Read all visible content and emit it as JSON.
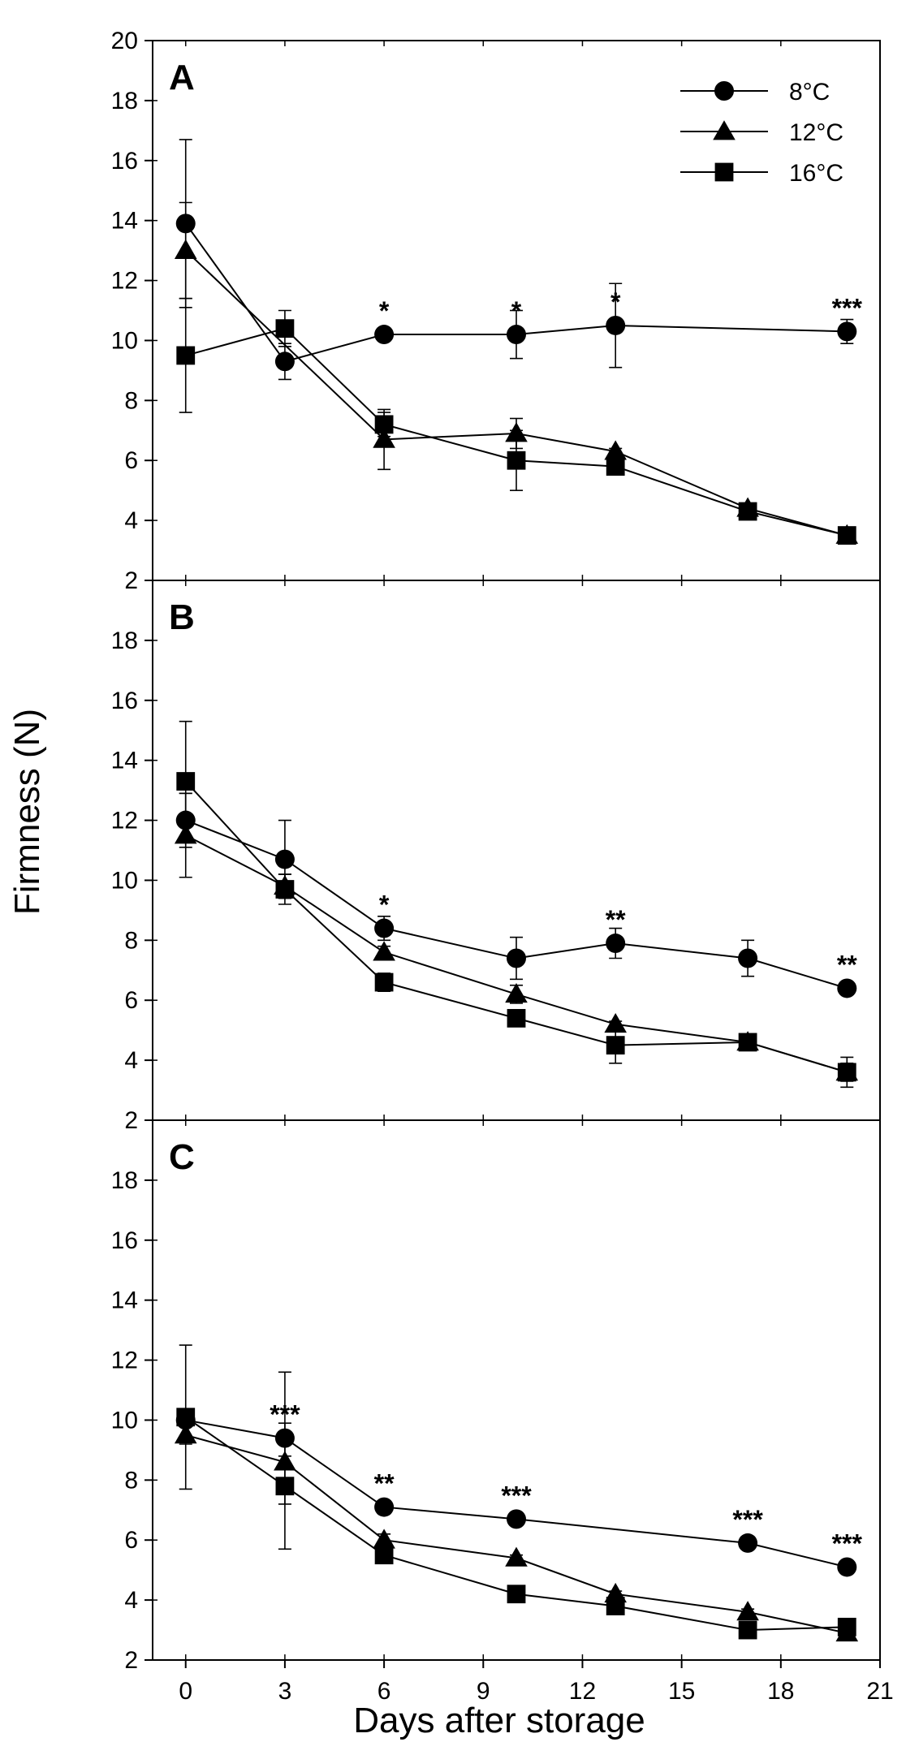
{
  "chart_data": {
    "type": "line",
    "xlabel": "Days after storage",
    "ylabel": "Firmness (N)",
    "xlim": [
      -1,
      21
    ],
    "xticks": [
      0,
      3,
      6,
      9,
      12,
      15,
      18,
      21
    ],
    "legend": {
      "position": "top-right",
      "entries": [
        {
          "name": "8°C",
          "marker": "circle"
        },
        {
          "name": "12°C",
          "marker": "triangle"
        },
        {
          "name": "16°C",
          "marker": "square"
        }
      ]
    },
    "panels": [
      {
        "label": "A",
        "ylim": [
          2,
          20
        ],
        "yticks": [
          2,
          4,
          6,
          8,
          10,
          12,
          14,
          16,
          18,
          20
        ],
        "series": [
          {
            "name": "8°C",
            "marker": "circle",
            "x": [
              0,
              3,
              6,
              10,
              13,
              20
            ],
            "y": [
              13.9,
              9.3,
              10.2,
              10.2,
              10.5,
              10.3
            ],
            "err": [
              2.8,
              0.6,
              0.1,
              0.8,
              1.4,
              0.4
            ]
          },
          {
            "name": "12°C",
            "marker": "triangle",
            "x": [
              0,
              6,
              10,
              13,
              17,
              20
            ],
            "y": [
              13.0,
              6.7,
              6.9,
              6.3,
              4.4,
              3.5
            ],
            "err": [
              1.6,
              1.0,
              0.5,
              0.1,
              0.1,
              0.1
            ]
          },
          {
            "name": "16°C",
            "marker": "square",
            "x": [
              0,
              3,
              6,
              10,
              13,
              17,
              20
            ],
            "y": [
              9.5,
              10.4,
              7.2,
              6.0,
              5.8,
              4.3,
              3.5
            ],
            "err": [
              1.9,
              0.6,
              0.4,
              1.0,
              0.1,
              0.1,
              0.1
            ]
          }
        ],
        "annotations": [
          {
            "x": 6,
            "y": 10.2,
            "text": "*"
          },
          {
            "x": 10,
            "y": 10.2,
            "text": "*"
          },
          {
            "x": 13,
            "y": 10.5,
            "text": "*"
          },
          {
            "x": 20,
            "y": 10.3,
            "text": "***"
          }
        ]
      },
      {
        "label": "B",
        "ylim": [
          2,
          20
        ],
        "yticks": [
          2,
          4,
          6,
          8,
          10,
          12,
          14,
          16,
          18
        ],
        "series": [
          {
            "name": "8°C",
            "marker": "circle",
            "x": [
              0,
              3,
              6,
              10,
              13,
              17,
              20
            ],
            "y": [
              12.0,
              10.7,
              8.4,
              7.4,
              7.9,
              7.4,
              6.4
            ],
            "err": [
              0.9,
              1.3,
              0.4,
              0.7,
              0.5,
              0.6,
              0.2
            ]
          },
          {
            "name": "12°C",
            "marker": "triangle",
            "x": [
              0,
              3,
              6,
              10,
              13,
              17,
              20
            ],
            "y": [
              11.5,
              9.8,
              7.6,
              6.2,
              5.2,
              4.6,
              3.6
            ],
            "err": [
              1.4,
              0.4,
              0.2,
              0.3,
              0.1,
              0.1,
              0.3
            ]
          },
          {
            "name": "16°C",
            "marker": "square",
            "x": [
              0,
              3,
              6,
              10,
              13,
              17,
              20
            ],
            "y": [
              13.3,
              9.7,
              6.6,
              5.4,
              4.5,
              4.6,
              3.6
            ],
            "err": [
              2.0,
              0.5,
              0.3,
              0.2,
              0.6,
              0.1,
              0.5
            ]
          }
        ],
        "annotations": [
          {
            "x": 6,
            "y": 8.4,
            "text": "*"
          },
          {
            "x": 13,
            "y": 7.9,
            "text": "**"
          },
          {
            "x": 20,
            "y": 6.4,
            "text": "**"
          }
        ]
      },
      {
        "label": "C",
        "ylim": [
          2,
          20
        ],
        "yticks": [
          2,
          4,
          6,
          8,
          10,
          12,
          14,
          16,
          18
        ],
        "series": [
          {
            "name": "8°C",
            "marker": "circle",
            "x": [
              0,
              3,
              6,
              10,
              17,
              20
            ],
            "y": [
              10.0,
              9.4,
              7.1,
              6.7,
              5.9,
              5.1
            ],
            "err": [
              0.1,
              2.2,
              0.1,
              0.1,
              0.1,
              0.1
            ]
          },
          {
            "name": "12°C",
            "marker": "triangle",
            "x": [
              0,
              3,
              6,
              10,
              13,
              17,
              20
            ],
            "y": [
              9.5,
              8.6,
              6.0,
              5.4,
              4.2,
              3.6,
              2.9
            ],
            "err": [
              0.3,
              0.2,
              0.2,
              0.1,
              0.1,
              0.1,
              0.1
            ]
          },
          {
            "name": "16°C",
            "marker": "square",
            "x": [
              0,
              3,
              6,
              10,
              13,
              17,
              20
            ],
            "y": [
              10.1,
              7.8,
              5.5,
              4.2,
              3.8,
              3.0,
              3.1
            ],
            "err": [
              2.4,
              2.1,
              0.2,
              0.1,
              0.1,
              0.1,
              0.1
            ]
          }
        ],
        "annotations": [
          {
            "x": 3,
            "y": 9.4,
            "text": "***"
          },
          {
            "x": 6,
            "y": 7.1,
            "text": "**"
          },
          {
            "x": 10,
            "y": 6.7,
            "text": "***"
          },
          {
            "x": 17,
            "y": 5.9,
            "text": "***"
          },
          {
            "x": 20,
            "y": 5.1,
            "text": "***"
          }
        ]
      }
    ]
  }
}
